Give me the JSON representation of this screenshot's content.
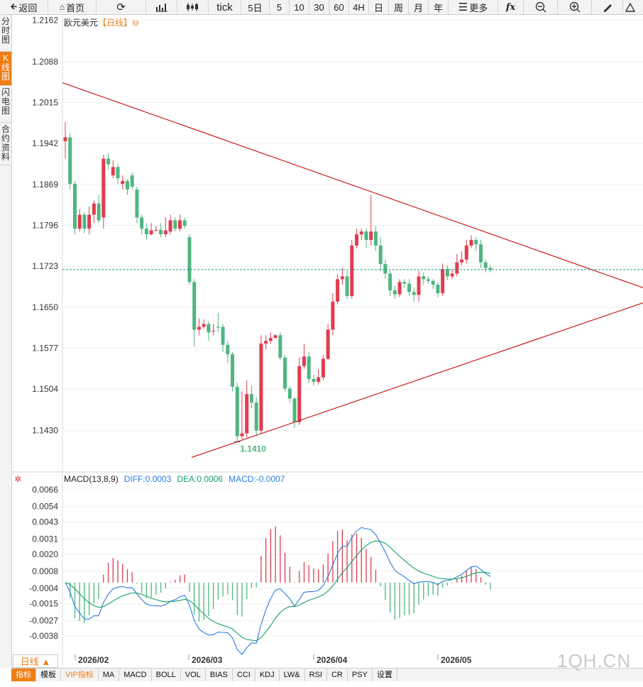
{
  "toolbar": {
    "back": "返回",
    "home": "首页",
    "tick": "tick",
    "d5": "5日",
    "m5": "5",
    "m10": "10",
    "m30": "30",
    "m60": "60",
    "h4": "4H",
    "day": "日",
    "week": "周",
    "month": "月",
    "year": "年",
    "more": "更多",
    "fx": "fx"
  },
  "sidetabs": [
    "分时图",
    "K线图",
    "闪电图",
    "合约资料"
  ],
  "title": {
    "name": "欧元美元",
    "period": "【日线】",
    "icon": "⊖"
  },
  "macd_header": {
    "label": "MACD(13,8,9)",
    "diff": "DIFF:0.0003",
    "dea": "DEA:0.0006",
    "macd": "MACD:-0.0007"
  },
  "period_button": "日线 ▲",
  "bottom_tabs": [
    "指标",
    "模板",
    "VIP指标",
    "MA",
    "MACD",
    "BOLL",
    "VOL",
    "BIAS",
    "CCI",
    "KDJ",
    "LW&",
    "RSI",
    "CR",
    "PSY",
    "设置"
  ],
  "watermark": "1QH.CN",
  "colors": {
    "up": "#e03c50",
    "down": "#4fb582",
    "accent": "#ef7d13",
    "trendline": "#c81e1e",
    "diff": "#2a7ce0",
    "dea": "#16a06b"
  },
  "chart_data": [
    {
      "type": "candlestick",
      "price_axis_ticks": [
        1.2162,
        1.2088,
        1.2015,
        1.1942,
        1.1869,
        1.1796,
        1.1723,
        1.165,
        1.1577,
        1.1504,
        1.143
      ],
      "ylim": [
        1.136,
        1.217
      ],
      "x_ticks": [
        "2026/02",
        "2026/03",
        "2026/04",
        "2026/05"
      ],
      "last_price": 1.1717,
      "low_label": "1.1410",
      "candles": [
        [
          1.1946,
          1.1953,
          1.198,
          1.1915
        ],
        [
          1.1953,
          1.187,
          1.196,
          1.186
        ],
        [
          1.187,
          1.179,
          1.1875,
          1.178
        ],
        [
          1.179,
          1.1815,
          1.1825,
          1.1785
        ],
        [
          1.1815,
          1.179,
          1.182,
          1.1782
        ],
        [
          1.179,
          1.1815,
          1.183,
          1.178
        ],
        [
          1.1815,
          1.1835,
          1.184,
          1.18
        ],
        [
          1.1835,
          1.1805,
          1.185,
          1.18
        ],
        [
          1.181,
          1.1915,
          1.1922,
          1.179
        ],
        [
          1.1915,
          1.1905,
          1.1925,
          1.1895
        ],
        [
          1.1885,
          1.19,
          1.1912,
          1.188
        ],
        [
          1.19,
          1.188,
          1.1905,
          1.187
        ],
        [
          1.187,
          1.1875,
          1.1885,
          1.186
        ],
        [
          1.1875,
          1.186,
          1.1878,
          1.185
        ],
        [
          1.1885,
          1.1865,
          1.189,
          1.186
        ],
        [
          1.186,
          1.181,
          1.1865,
          1.18
        ],
        [
          1.181,
          1.179,
          1.1815,
          1.178
        ],
        [
          1.179,
          1.178,
          1.18,
          1.177
        ],
        [
          1.178,
          1.1787,
          1.18,
          1.1778
        ],
        [
          1.1787,
          1.1788,
          1.1795,
          1.1785
        ],
        [
          1.1788,
          1.178,
          1.18,
          1.1775
        ],
        [
          1.178,
          1.1787,
          1.181,
          1.1775
        ],
        [
          1.1785,
          1.1805,
          1.1815,
          1.178
        ],
        [
          1.1805,
          1.179,
          1.181,
          1.1785
        ],
        [
          1.179,
          1.1805,
          1.1815,
          1.1785
        ],
        [
          1.1805,
          1.1795,
          1.181,
          1.179
        ],
        [
          1.1775,
          1.1695,
          1.178,
          1.169
        ],
        [
          1.1695,
          1.161,
          1.17,
          1.158
        ],
        [
          1.161,
          1.1615,
          1.163,
          1.16
        ],
        [
          1.1615,
          1.162,
          1.1628,
          1.1612
        ],
        [
          1.162,
          1.1605,
          1.1625,
          1.159
        ],
        [
          1.1608,
          1.1608,
          1.162,
          1.16
        ],
        [
          1.1615,
          1.1614,
          1.164,
          1.1605
        ],
        [
          1.1615,
          1.1583,
          1.162,
          1.157
        ],
        [
          1.1583,
          1.1566,
          1.159,
          1.155
        ],
        [
          1.1566,
          1.1508,
          1.157,
          1.15
        ],
        [
          1.1508,
          1.142,
          1.1515,
          1.141
        ],
        [
          1.142,
          1.1425,
          1.15,
          1.1415
        ],
        [
          1.1425,
          1.1495,
          1.152,
          1.1418
        ],
        [
          1.1495,
          1.148,
          1.151,
          1.147
        ],
        [
          1.148,
          1.143,
          1.149,
          1.142
        ],
        [
          1.143,
          1.1585,
          1.16,
          1.1425
        ],
        [
          1.1585,
          1.159,
          1.16,
          1.1575
        ],
        [
          1.159,
          1.1595,
          1.1605,
          1.1585
        ],
        [
          1.1595,
          1.16,
          1.1602,
          1.1598
        ],
        [
          1.16,
          1.156,
          1.1605,
          1.1555
        ],
        [
          1.156,
          1.1505,
          1.1565,
          1.15
        ],
        [
          1.1505,
          1.1487,
          1.151,
          1.148
        ],
        [
          1.1487,
          1.1445,
          1.149,
          1.1435
        ],
        [
          1.1445,
          1.1545,
          1.156,
          1.144
        ],
        [
          1.1545,
          1.1562,
          1.1585,
          1.154
        ],
        [
          1.1562,
          1.1522,
          1.157,
          1.1515
        ],
        [
          1.1522,
          1.1517,
          1.153,
          1.151
        ],
        [
          1.1517,
          1.1525,
          1.154,
          1.1512
        ],
        [
          1.1525,
          1.1558,
          1.1565,
          1.152
        ],
        [
          1.1558,
          1.161,
          1.162,
          1.1555
        ],
        [
          1.161,
          1.166,
          1.1675,
          1.16
        ],
        [
          1.166,
          1.17,
          1.171,
          1.1655
        ],
        [
          1.17,
          1.1705,
          1.172,
          1.169
        ],
        [
          1.1705,
          1.167,
          1.1715,
          1.1665
        ],
        [
          1.167,
          1.176,
          1.177,
          1.1665
        ],
        [
          1.176,
          1.178,
          1.179,
          1.1755
        ],
        [
          1.178,
          1.1785,
          1.179,
          1.177
        ],
        [
          1.1785,
          1.177,
          1.179,
          1.1755
        ],
        [
          1.177,
          1.1785,
          1.185,
          1.176
        ],
        [
          1.1785,
          1.176,
          1.1795,
          1.175
        ],
        [
          1.176,
          1.1727,
          1.1775,
          1.1715
        ],
        [
          1.1727,
          1.171,
          1.1735,
          1.17
        ],
        [
          1.171,
          1.168,
          1.1715,
          1.167
        ],
        [
          1.168,
          1.1673,
          1.1688,
          1.1665
        ],
        [
          1.1673,
          1.1695,
          1.17,
          1.1668
        ],
        [
          1.1695,
          1.1692,
          1.17,
          1.1685
        ],
        [
          1.1692,
          1.1677,
          1.17,
          1.167
        ],
        [
          1.1677,
          1.1672,
          1.1685,
          1.166
        ],
        [
          1.1672,
          1.1705,
          1.1715,
          1.166
        ],
        [
          1.1705,
          1.17,
          1.1712,
          1.169
        ],
        [
          1.17,
          1.1697,
          1.1705,
          1.1692
        ],
        [
          1.1697,
          1.169,
          1.17,
          1.1682
        ],
        [
          1.169,
          1.1675,
          1.1695,
          1.1668
        ],
        [
          1.1675,
          1.1718,
          1.1728,
          1.167
        ],
        [
          1.1718,
          1.1705,
          1.1725,
          1.1698
        ],
        [
          1.1705,
          1.171,
          1.1718,
          1.17
        ],
        [
          1.171,
          1.173,
          1.1745,
          1.1705
        ],
        [
          1.173,
          1.1735,
          1.175,
          1.1725
        ],
        [
          1.1735,
          1.176,
          1.177,
          1.1728
        ],
        [
          1.176,
          1.177,
          1.1778,
          1.1755
        ],
        [
          1.177,
          1.1762,
          1.1775,
          1.175
        ],
        [
          1.1762,
          1.173,
          1.177,
          1.172
        ],
        [
          1.173,
          1.172,
          1.1735,
          1.1712
        ],
        [
          1.172,
          1.1717,
          1.1725,
          1.1712
        ]
      ]
    },
    {
      "type": "macd",
      "params": [
        13,
        8,
        9
      ],
      "macd_axis_ticks": [
        0.0066,
        0.0054,
        0.0043,
        0.0031,
        0.002,
        0.0008,
        -0.0004,
        -0.0015,
        -0.0027,
        -0.0038
      ],
      "ylim": [
        -0.005,
        0.007
      ]
    }
  ]
}
